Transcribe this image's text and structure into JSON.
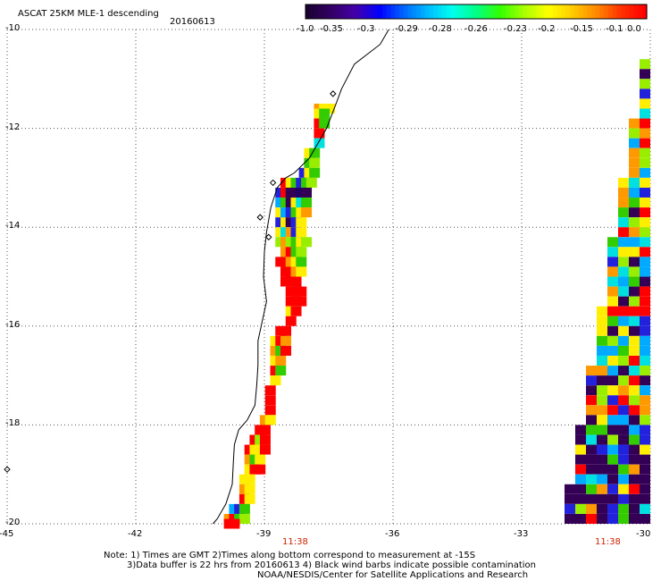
{
  "header": {
    "title": "ASCAT 25KM MLE-1 descending",
    "date": "20160613"
  },
  "colorbar": {
    "tick_labels": [
      "-1.0",
      "-0.35",
      "-0.3",
      "-0.29",
      "-0.28",
      "-0.26",
      "-0.23",
      "-0.2",
      "-0.15",
      "-0.1",
      "0.0"
    ]
  },
  "axes": {
    "y_labels": [
      "-10",
      "-12",
      "-14",
      "-16",
      "-18",
      "-20"
    ],
    "x_labels": [
      "-45",
      "-42",
      "-39",
      "-36",
      "-33",
      "-30"
    ]
  },
  "time_labels": {
    "left": "11:38",
    "right": "11:38"
  },
  "notes": {
    "line1": "Note: 1) Times are GMT 2)Times along bottom correspond to measurement at -15S",
    "line2": "3)Data buffer is 22 hrs from 20160613 4) Black wind barbs indicate possible contamination",
    "line3": "NOAA/NESDIS/Center for Satellite Applications and Research"
  },
  "map_data": {
    "lon_range": [
      -45,
      -30
    ],
    "lat_range": [
      -20,
      -10
    ],
    "coastline": [
      [
        -36.1,
        -10.0
      ],
      [
        -36.3,
        -10.3
      ],
      [
        -36.9,
        -10.7
      ],
      [
        -37.2,
        -11.2
      ],
      [
        -37.35,
        -11.55
      ],
      [
        -37.55,
        -12.0
      ],
      [
        -37.95,
        -12.6
      ],
      [
        -38.3,
        -12.9
      ],
      [
        -38.5,
        -13.0
      ],
      [
        -38.7,
        -13.2
      ],
      [
        -38.85,
        -13.6
      ],
      [
        -38.95,
        -14.1
      ],
      [
        -39.0,
        -14.5
      ],
      [
        -39.02,
        -15.0
      ],
      [
        -38.95,
        -15.5
      ],
      [
        -39.05,
        -15.9
      ],
      [
        -39.15,
        -16.3
      ],
      [
        -39.15,
        -16.8
      ],
      [
        -39.18,
        -17.2
      ],
      [
        -39.22,
        -17.6
      ],
      [
        -39.4,
        -17.9
      ],
      [
        -39.6,
        -18.1
      ],
      [
        -39.7,
        -18.4
      ],
      [
        -39.72,
        -18.7
      ],
      [
        -39.75,
        -19.2
      ],
      [
        -39.9,
        -19.6
      ],
      [
        -40.1,
        -19.9
      ],
      [
        -40.2,
        -20.0
      ]
    ],
    "pass_left": [
      {
        "lat": -11.6,
        "cells": [
          {
            "lon": -37.72,
            "c": "#ff9900"
          },
          {
            "lon": -37.6,
            "c": "#ffee00"
          },
          {
            "lon": -37.48,
            "c": "#ffee00"
          }
        ]
      },
      {
        "lat": -11.7,
        "cells": [
          {
            "lon": -37.72,
            "c": "#ffee00"
          },
          {
            "lon": -37.6,
            "c": "#33cc00"
          }
        ]
      },
      {
        "lat": -11.9,
        "cells": [
          {
            "lon": -37.72,
            "c": "#ff0000"
          },
          {
            "lon": -37.6,
            "c": "#33cc00"
          }
        ]
      },
      {
        "lat": -12.1,
        "cells": [
          {
            "lon": -37.72,
            "c": "#ff0000"
          }
        ]
      },
      {
        "lat": -12.3,
        "cells": [
          {
            "lon": -37.72,
            "c": "#00e0e0"
          }
        ]
      },
      {
        "lat": -12.5,
        "cells": [
          {
            "lon": -37.95,
            "c": "#ffee00"
          },
          {
            "lon": -37.83,
            "c": "#33cc00"
          }
        ]
      },
      {
        "lat": -12.7,
        "cells": [
          {
            "lon": -37.95,
            "c": "#33cc00"
          },
          {
            "lon": -37.83,
            "c": "#99ee00"
          }
        ]
      },
      {
        "lat": -12.9,
        "cells": [
          {
            "lon": -38.07,
            "c": "#2222dd"
          },
          {
            "lon": -37.95,
            "c": "#ffee00"
          },
          {
            "lon": -37.83,
            "c": "#33cc00"
          }
        ]
      },
      {
        "lat": -13.1,
        "cells": [
          {
            "lon": -38.5,
            "c": "#ff0000"
          },
          {
            "lon": -38.38,
            "c": "#ffee00"
          },
          {
            "lon": -38.26,
            "c": "#33cc00"
          },
          {
            "lon": -38.14,
            "c": "#2222dd"
          },
          {
            "lon": -38.02,
            "c": "#33cc00"
          },
          {
            "lon": -37.9,
            "c": "#99ee00"
          }
        ]
      },
      {
        "lat": -13.3,
        "cells": [
          {
            "lon": -38.62,
            "c": "#2222dd"
          },
          {
            "lon": -38.5,
            "c": "#ff0000"
          },
          {
            "lon": -38.38,
            "c": "#330055"
          },
          {
            "lon": -38.26,
            "c": "#330055"
          },
          {
            "lon": -38.14,
            "c": "#220066"
          },
          {
            "lon": -38.02,
            "c": "#330055"
          }
        ]
      },
      {
        "lat": -13.5,
        "cells": [
          {
            "lon": -38.62,
            "c": "#00aaff"
          },
          {
            "lon": -38.5,
            "c": "#33cc00"
          },
          {
            "lon": -38.38,
            "c": "#330055"
          },
          {
            "lon": -38.26,
            "c": "#ffee00"
          },
          {
            "lon": -38.14,
            "c": "#00e0e0"
          },
          {
            "lon": -38.02,
            "c": "#33cc00"
          }
        ]
      },
      {
        "lat": -13.7,
        "cells": [
          {
            "lon": -38.62,
            "c": "#ffee00"
          },
          {
            "lon": -38.5,
            "c": "#00aaff"
          },
          {
            "lon": -38.38,
            "c": "#2222dd"
          },
          {
            "lon": -38.26,
            "c": "#33cc00"
          },
          {
            "lon": -38.14,
            "c": "#ffee00"
          },
          {
            "lon": -38.02,
            "c": "#ff9900"
          }
        ]
      },
      {
        "lat": -13.9,
        "cells": [
          {
            "lon": -38.62,
            "c": "#2222dd"
          },
          {
            "lon": -38.5,
            "c": "#ffee00"
          },
          {
            "lon": -38.38,
            "c": "#330055"
          },
          {
            "lon": -38.26,
            "c": "#2222dd"
          },
          {
            "lon": -38.14,
            "c": "#ffee00"
          }
        ]
      },
      {
        "lat": -14.1,
        "cells": [
          {
            "lon": -38.62,
            "c": "#ffee00"
          },
          {
            "lon": -38.5,
            "c": "#00e0e0"
          },
          {
            "lon": -38.38,
            "c": "#ff9900"
          },
          {
            "lon": -38.26,
            "c": "#2222dd"
          },
          {
            "lon": -38.14,
            "c": "#ffee00"
          }
        ]
      },
      {
        "lat": -14.3,
        "cells": [
          {
            "lon": -38.62,
            "c": "#99ee00"
          },
          {
            "lon": -38.5,
            "c": "#ff9900"
          },
          {
            "lon": -38.38,
            "c": "#99ee00"
          },
          {
            "lon": -38.26,
            "c": "#33cc00"
          },
          {
            "lon": -38.14,
            "c": "#ffee00"
          },
          {
            "lon": -38.02,
            "c": "#99ee00"
          }
        ]
      },
      {
        "lat": -14.5,
        "cells": [
          {
            "lon": -38.5,
            "c": "#ff9900"
          },
          {
            "lon": -38.38,
            "c": "#ff0000"
          },
          {
            "lon": -38.26,
            "c": "#33cc00"
          },
          {
            "lon": -38.14,
            "c": "#99ee00"
          }
        ]
      },
      {
        "lat": -14.7,
        "cells": [
          {
            "lon": -38.62,
            "c": "#ff0000"
          },
          {
            "lon": -38.5,
            "c": "#ff0000"
          },
          {
            "lon": -38.38,
            "c": "#ff9900"
          },
          {
            "lon": -38.26,
            "c": "#ffee00"
          },
          {
            "lon": -38.14,
            "c": "#33cc00"
          }
        ]
      },
      {
        "lat": -14.9,
        "cells": [
          {
            "lon": -38.5,
            "c": "#ff0000"
          },
          {
            "lon": -38.38,
            "c": "#ff0000"
          },
          {
            "lon": -38.26,
            "c": "#ff9900"
          },
          {
            "lon": -38.14,
            "c": "#ffee00"
          }
        ]
      },
      {
        "lat": -15.1,
        "cells": [
          {
            "lon": -38.5,
            "c": "#ff0000"
          },
          {
            "lon": -38.38,
            "c": "#ff0000"
          },
          {
            "lon": -38.26,
            "c": "#ff0000"
          }
        ]
      },
      {
        "lat": -15.3,
        "cells": [
          {
            "lon": -38.38,
            "c": "#ff0000"
          },
          {
            "lon": -38.26,
            "c": "#ff0000"
          },
          {
            "lon": -38.14,
            "c": "#ff0000"
          }
        ]
      },
      {
        "lat": -15.5,
        "cells": [
          {
            "lon": -38.38,
            "c": "#ff0000"
          },
          {
            "lon": -38.26,
            "c": "#ff0000"
          },
          {
            "lon": -38.14,
            "c": "#ff0000"
          }
        ]
      },
      {
        "lat": -15.7,
        "cells": [
          {
            "lon": -38.38,
            "c": "#ffee00"
          },
          {
            "lon": -38.26,
            "c": "#ff0000"
          }
        ]
      },
      {
        "lat": -15.9,
        "cells": [
          {
            "lon": -38.38,
            "c": "#ff0000"
          }
        ]
      },
      {
        "lat": -16.1,
        "cells": [
          {
            "lon": -38.62,
            "c": "#ff0000"
          },
          {
            "lon": -38.5,
            "c": "#ff0000"
          }
        ]
      },
      {
        "lat": -16.3,
        "cells": [
          {
            "lon": -38.74,
            "c": "#ffee00"
          },
          {
            "lon": -38.62,
            "c": "#ff0000"
          },
          {
            "lon": -38.5,
            "c": "#ff9900"
          }
        ]
      },
      {
        "lat": -16.5,
        "cells": [
          {
            "lon": -38.74,
            "c": "#ff9900"
          },
          {
            "lon": -38.62,
            "c": "#33cc00"
          },
          {
            "lon": -38.5,
            "c": "#ff0000"
          }
        ]
      },
      {
        "lat": -16.7,
        "cells": [
          {
            "lon": -38.74,
            "c": "#ffee00"
          },
          {
            "lon": -38.62,
            "c": "#ff9900"
          }
        ]
      },
      {
        "lat": -16.9,
        "cells": [
          {
            "lon": -38.74,
            "c": "#ff0000"
          },
          {
            "lon": -38.62,
            "c": "#33cc00"
          }
        ]
      },
      {
        "lat": -17.1,
        "cells": [
          {
            "lon": -38.74,
            "c": "#ffee00"
          }
        ]
      },
      {
        "lat": -17.3,
        "cells": [
          {
            "lon": -38.86,
            "c": "#ff0000"
          }
        ]
      },
      {
        "lat": -17.5,
        "cells": [
          {
            "lon": -38.86,
            "c": "#ff0000"
          }
        ]
      },
      {
        "lat": -17.7,
        "cells": [
          {
            "lon": -38.86,
            "c": "#ff0000"
          }
        ]
      },
      {
        "lat": -17.9,
        "cells": [
          {
            "lon": -38.98,
            "c": "#ff9900"
          },
          {
            "lon": -38.86,
            "c": "#ffee00"
          }
        ]
      },
      {
        "lat": -18.1,
        "cells": [
          {
            "lon": -39.1,
            "c": "#ff0000"
          },
          {
            "lon": -38.98,
            "c": "#ff0000"
          }
        ]
      },
      {
        "lat": -18.3,
        "cells": [
          {
            "lon": -39.22,
            "c": "#ff0000"
          },
          {
            "lon": -39.1,
            "c": "#99ee00"
          },
          {
            "lon": -38.98,
            "c": "#ff0000"
          }
        ]
      },
      {
        "lat": -18.5,
        "cells": [
          {
            "lon": -39.34,
            "c": "#ff0000"
          },
          {
            "lon": -39.22,
            "c": "#ffee00"
          },
          {
            "lon": -39.1,
            "c": "#ffee00"
          },
          {
            "lon": -38.98,
            "c": "#ff0000"
          }
        ]
      },
      {
        "lat": -18.7,
        "cells": [
          {
            "lon": -39.34,
            "c": "#ff9900"
          },
          {
            "lon": -39.22,
            "c": "#33cc00"
          },
          {
            "lon": -39.1,
            "c": "#ffee00"
          }
        ]
      },
      {
        "lat": -18.9,
        "cells": [
          {
            "lon": -39.34,
            "c": "#ffee00"
          },
          {
            "lon": -39.22,
            "c": "#ff0000"
          },
          {
            "lon": -39.1,
            "c": "#ff0000"
          }
        ]
      },
      {
        "lat": -19.1,
        "cells": [
          {
            "lon": -39.46,
            "c": "#ffee00"
          },
          {
            "lon": -39.34,
            "c": "#ffee00"
          }
        ]
      },
      {
        "lat": -19.3,
        "cells": [
          {
            "lon": -39.46,
            "c": "#ff9900"
          },
          {
            "lon": -39.34,
            "c": "#ffee00"
          }
        ]
      },
      {
        "lat": -19.5,
        "cells": [
          {
            "lon": -39.46,
            "c": "#ff0000"
          },
          {
            "lon": -39.34,
            "c": "#ffee00"
          }
        ]
      },
      {
        "lat": -19.7,
        "cells": [
          {
            "lon": -39.7,
            "c": "#00aaff"
          },
          {
            "lon": -39.58,
            "c": "#2222dd"
          },
          {
            "lon": -39.46,
            "c": "#33cc00"
          }
        ]
      },
      {
        "lat": -19.9,
        "cells": [
          {
            "lon": -39.82,
            "c": "#ff9900"
          },
          {
            "lon": -39.7,
            "c": "#ff0000"
          },
          {
            "lon": -39.58,
            "c": "#33cc00"
          },
          {
            "lon": -39.46,
            "c": "#99ee00"
          }
        ]
      },
      {
        "lat": -20.0,
        "cells": [
          {
            "lon": -39.82,
            "c": "#ff0000"
          },
          {
            "lon": -39.7,
            "c": "#ff0000"
          }
        ]
      }
    ]
  }
}
